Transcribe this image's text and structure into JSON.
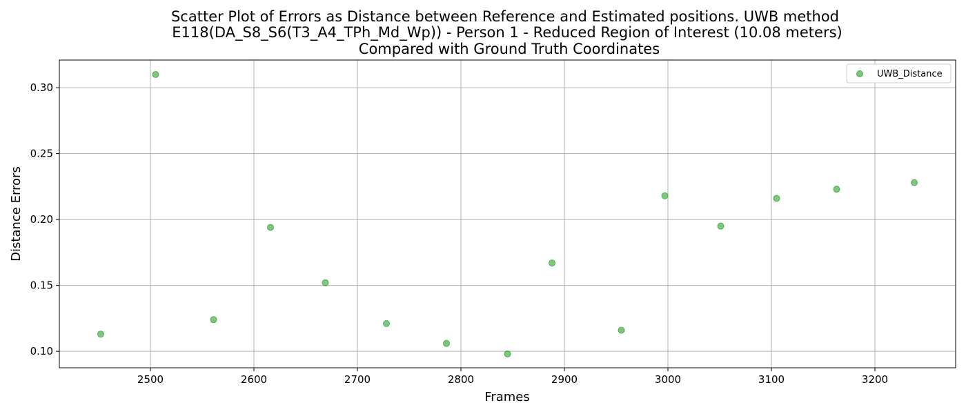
{
  "chart_data": {
    "type": "scatter",
    "title_lines": [
      "Scatter Plot of Errors as Distance between Reference and Estimated positions. UWB method",
      "E118(DA_S8_S6(T3_A4_TPh_Md_Wp)) - Person 1 - Reduced Region of Interest (10.08 meters)",
      "Compared with Ground Truth Coordinates"
    ],
    "xlabel": "Frames",
    "ylabel": "Distance Errors",
    "xlim": [
      2412,
      3278
    ],
    "ylim": [
      0.0875,
      0.321
    ],
    "xticks": [
      2500,
      2600,
      2700,
      2800,
      2900,
      3000,
      3100,
      3200
    ],
    "yticks": [
      0.1,
      0.15,
      0.2,
      0.25,
      0.3
    ],
    "ytick_labels": [
      "0.10",
      "0.15",
      "0.20",
      "0.25",
      "0.30"
    ],
    "grid": true,
    "legend_position": "top-right",
    "series": [
      {
        "name": "UWB_Distance",
        "color": "#2ca02c",
        "x": [
          2452,
          2505,
          2561,
          2616,
          2669,
          2728,
          2786,
          2845,
          2888,
          2955,
          2997,
          3051,
          3105,
          3163,
          3238
        ],
        "y": [
          0.113,
          0.31,
          0.124,
          0.194,
          0.152,
          0.121,
          0.106,
          0.098,
          0.167,
          0.116,
          0.218,
          0.195,
          0.216,
          0.223,
          0.228
        ]
      }
    ]
  }
}
